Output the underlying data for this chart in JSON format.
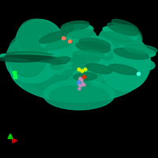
{
  "background_color": "#000000",
  "protein_color": "#00A878",
  "protein_dark": "#009060",
  "protein_darker": "#007048",
  "protein_shadow": "#004A30",
  "axes_x_color": "#CC0000",
  "axes_y_color": "#00CC00",
  "ligand_pink_color": "#CC88BB",
  "ligand_yellow_color": "#CCEE00",
  "ligand_red_color": "#CC3300",
  "ligand_blue_color": "#4488FF",
  "small_dot_green": "#00FF44",
  "small_dot_salmon": "#FF7755",
  "small_dot_cyan": "#44FFDD",
  "figsize": [
    2.0,
    2.0
  ],
  "dpi": 100
}
